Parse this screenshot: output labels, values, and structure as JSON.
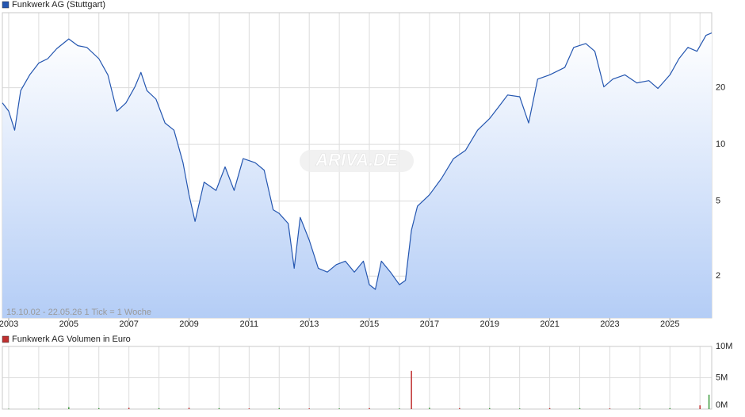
{
  "chart_data": [
    {
      "type": "line",
      "series": [
        {
          "name": "Funkwerk AG (Stuttgart)",
          "color": "#2456b0",
          "x": [
            2002.79,
            2003.0,
            2003.2,
            2003.4,
            2003.7,
            2004.0,
            2004.3,
            2004.6,
            2005.0,
            2005.3,
            2005.6,
            2006.0,
            2006.3,
            2006.6,
            2006.9,
            2007.2,
            2007.4,
            2007.6,
            2007.9,
            2008.2,
            2008.5,
            2008.8,
            2009.0,
            2009.2,
            2009.5,
            2009.9,
            2010.2,
            2010.5,
            2010.8,
            2011.2,
            2011.5,
            2011.8,
            2012.0,
            2012.3,
            2012.5,
            2012.7,
            2013.0,
            2013.3,
            2013.6,
            2013.9,
            2014.2,
            2014.5,
            2014.8,
            2015.0,
            2015.2,
            2015.4,
            2015.7,
            2016.0,
            2016.2,
            2016.4,
            2016.6,
            2017.0,
            2017.4,
            2017.8,
            2018.2,
            2018.6,
            2019.0,
            2019.3,
            2019.6,
            2020.0,
            2020.3,
            2020.6,
            2021.0,
            2021.5,
            2021.8,
            2022.2,
            2022.5,
            2022.8,
            2023.1,
            2023.5,
            2023.9,
            2024.3,
            2024.6,
            2025.0,
            2025.3,
            2025.6,
            2025.9,
            2026.2,
            2026.39
          ],
          "values": [
            16.6,
            15.0,
            11.9,
            19.3,
            23.4,
            27.0,
            28.5,
            32.2,
            36.3,
            33.4,
            32.7,
            28.5,
            23.4,
            15.0,
            16.6,
            20.2,
            24.1,
            19.3,
            17.4,
            13.0,
            11.9,
            8.0,
            5.4,
            3.9,
            6.3,
            5.7,
            7.6,
            5.7,
            8.4,
            8.0,
            7.3,
            4.5,
            4.3,
            3.8,
            2.2,
            4.1,
            3.1,
            2.2,
            2.1,
            2.3,
            2.4,
            2.1,
            2.4,
            1.8,
            1.7,
            2.4,
            2.1,
            1.8,
            1.9,
            3.5,
            4.7,
            5.4,
            6.6,
            8.4,
            9.3,
            11.9,
            13.7,
            15.8,
            18.3,
            17.9,
            13.0,
            22.2,
            23.4,
            25.6,
            32.7,
            34.3,
            31.2,
            20.2,
            22.2,
            23.4,
            21.2,
            21.8,
            19.8,
            23.4,
            28.5,
            32.7,
            31.2,
            37.9,
            39.0
          ]
        }
      ],
      "xlim": [
        2002.79,
        2026.39
      ],
      "xticks": [
        2003,
        2005,
        2007,
        2009,
        2011,
        2013,
        2015,
        2017,
        2019,
        2021,
        2023,
        2025
      ],
      "ylim": [
        1.2,
        50
      ],
      "log_scale": true,
      "yticks": [
        2,
        5,
        10,
        20
      ],
      "grid": true,
      "annotation": "15.10.02 - 22.05.26   1 Tick = 1 Woche",
      "watermark": "ARIVA.DE"
    },
    {
      "type": "bar",
      "series": [
        {
          "name": "Funkwerk AG Volumen in Euro",
          "color": "#c03030",
          "x": [
            2003.0,
            2004.0,
            2005.0,
            2006.0,
            2007.0,
            2008.0,
            2009.0,
            2010.0,
            2011.0,
            2012.0,
            2013.0,
            2014.0,
            2015.0,
            2016.0,
            2016.4,
            2017.0,
            2018.0,
            2019.0,
            2020.0,
            2021.0,
            2022.0,
            2023.0,
            2024.0,
            2025.0,
            2026.0,
            2026.3
          ],
          "values": [
            50000,
            50000,
            300000,
            150000,
            200000,
            150000,
            200000,
            150000,
            100000,
            150000,
            100000,
            100000,
            150000,
            100000,
            6100000,
            200000,
            150000,
            150000,
            100000,
            150000,
            150000,
            100000,
            100000,
            150000,
            600000,
            2300000
          ],
          "colors": [
            "#3a9a3a",
            "#3a9a3a",
            "#3a9a3a",
            "#3a9a3a",
            "#c03030",
            "#3a9a3a",
            "#c03030",
            "#3a9a3a",
            "#c03030",
            "#3a9a3a",
            "#c03030",
            "#3a9a3a",
            "#c03030",
            "#3a9a3a",
            "#c03030",
            "#3a9a3a",
            "#c03030",
            "#3a9a3a",
            "#3a9a3a",
            "#c03030",
            "#3a9a3a",
            "#c03030",
            "#3a9a3a",
            "#3a9a3a",
            "#c03030",
            "#3a9a3a"
          ]
        }
      ],
      "xlim": [
        2002.79,
        2026.39
      ],
      "ylim": [
        0,
        10000000
      ],
      "yticks": [
        {
          "value": 0,
          "label": "0M"
        },
        {
          "value": 5000000,
          "label": "5M"
        },
        {
          "value": 10000000,
          "label": "10M"
        }
      ],
      "grid": true
    }
  ]
}
